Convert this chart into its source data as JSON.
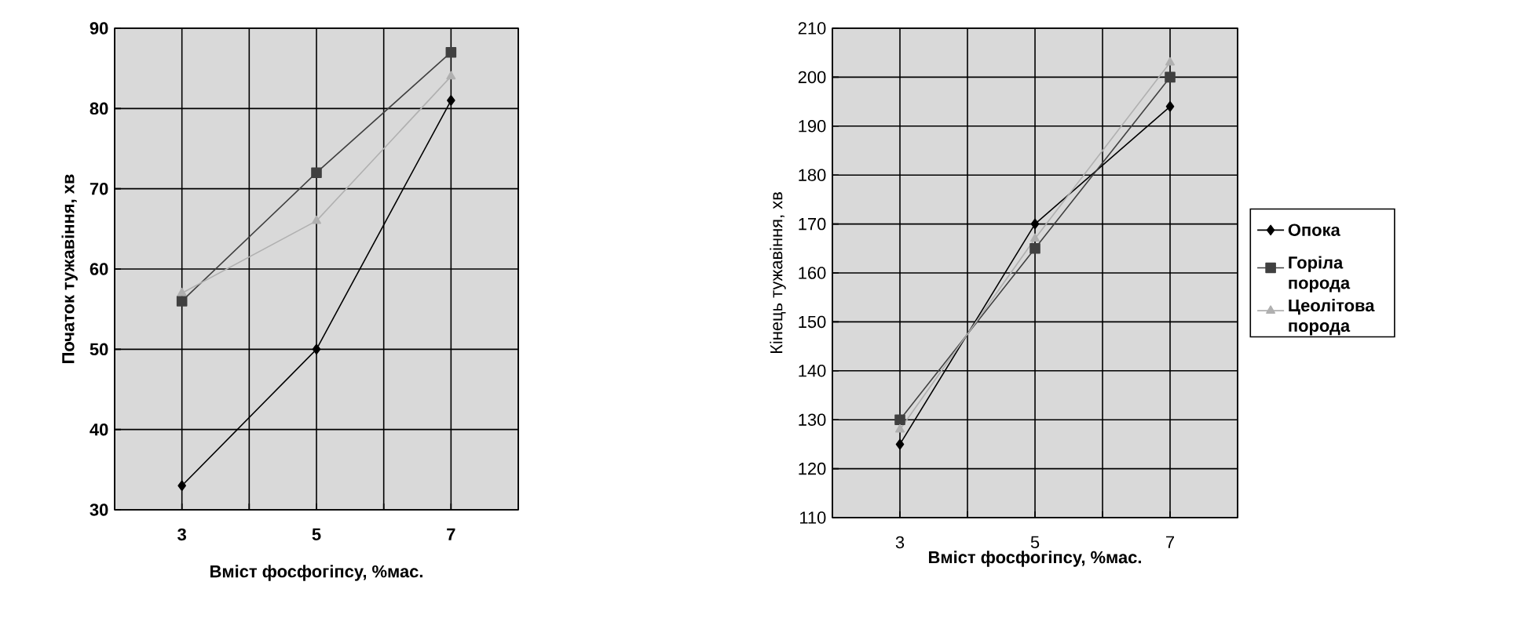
{
  "chart_data": [
    {
      "type": "line",
      "xlabel": "Вміст фосфогіпсу, %мас.",
      "ylabel": "Початок тужавіння, хв",
      "categories": [
        "3",
        "5",
        "7"
      ],
      "ylim": [
        30,
        90
      ],
      "yticks": [
        30,
        40,
        50,
        60,
        70,
        80,
        90
      ],
      "grid": true,
      "series": [
        {
          "color": "#000000",
          "marker": "diamond",
          "values": [
            33,
            50,
            81
          ]
        },
        {
          "color": "#404040",
          "marker": "square",
          "values": [
            56,
            72,
            87
          ]
        },
        {
          "color": "#b0b0b0",
          "marker": "triangle",
          "values": [
            57,
            66,
            84
          ]
        }
      ]
    },
    {
      "type": "line",
      "xlabel": "Вміст фосфогіпсу, %мас.",
      "ylabel": "Кінець тужавіння, хв",
      "categories": [
        "3",
        "5",
        "7"
      ],
      "ylim": [
        110,
        210
      ],
      "yticks": [
        110,
        120,
        130,
        140,
        150,
        160,
        170,
        180,
        190,
        200,
        210
      ],
      "grid": true,
      "legend": "right",
      "series": [
        {
          "name": "Опока",
          "color": "#000000",
          "marker": "diamond",
          "values": [
            125,
            170,
            194
          ]
        },
        {
          "name": "Горіла порода",
          "color": "#404040",
          "marker": "square",
          "values": [
            130,
            165,
            200
          ]
        },
        {
          "name": "Цеолітова порода",
          "color": "#b0b0b0",
          "marker": "triangle",
          "values": [
            128,
            167,
            203
          ]
        }
      ]
    }
  ]
}
